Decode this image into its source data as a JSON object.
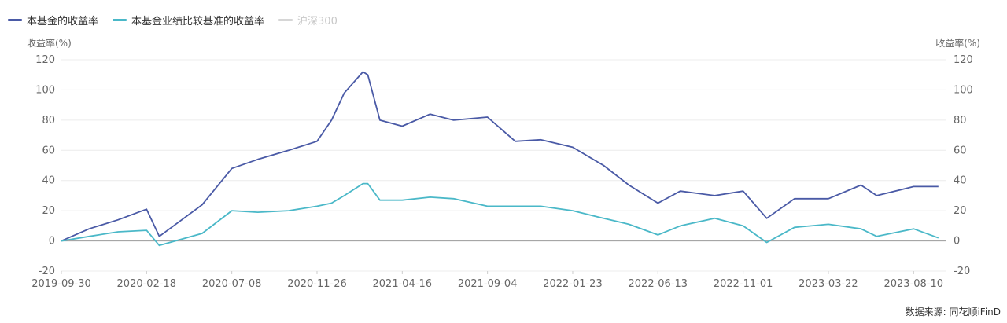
{
  "chart_data": {
    "type": "line",
    "series": [
      {
        "name": "本基金的收益率",
        "color": "#4a5aa6",
        "x": [
          "2019-09-30",
          "2019-11-15",
          "2020-01-02",
          "2020-02-18",
          "2020-03-10",
          "2020-05-20",
          "2020-07-08",
          "2020-08-20",
          "2020-10-10",
          "2020-11-26",
          "2020-12-20",
          "2021-01-10",
          "2021-02-10",
          "2021-02-18",
          "2021-03-10",
          "2021-04-16",
          "2021-06-01",
          "2021-07-10",
          "2021-09-04",
          "2021-10-20",
          "2021-12-01",
          "2022-01-23",
          "2022-03-15",
          "2022-04-26",
          "2022-06-13",
          "2022-07-20",
          "2022-09-15",
          "2022-11-01",
          "2022-12-10",
          "2023-01-25",
          "2023-03-22",
          "2023-05-15",
          "2023-06-10",
          "2023-08-10",
          "2023-09-20"
        ],
        "values": [
          0,
          8,
          14,
          21,
          3,
          24,
          48,
          54,
          60,
          66,
          80,
          98,
          112,
          110,
          80,
          76,
          84,
          80,
          82,
          66,
          67,
          62,
          50,
          37,
          25,
          33,
          30,
          33,
          15,
          28,
          28,
          37,
          30,
          36,
          36
        ]
      },
      {
        "name": "本基金业绩比较基准的收益率",
        "color": "#4ab8c8",
        "x": [
          "2019-09-30",
          "2019-11-15",
          "2020-01-02",
          "2020-02-18",
          "2020-03-10",
          "2020-05-20",
          "2020-07-08",
          "2020-08-20",
          "2020-10-10",
          "2020-11-26",
          "2020-12-20",
          "2021-01-10",
          "2021-02-10",
          "2021-02-18",
          "2021-03-10",
          "2021-04-16",
          "2021-06-01",
          "2021-07-10",
          "2021-09-04",
          "2021-10-20",
          "2021-12-01",
          "2022-01-23",
          "2022-03-15",
          "2022-04-26",
          "2022-06-13",
          "2022-07-20",
          "2022-09-15",
          "2022-11-01",
          "2022-12-10",
          "2023-01-25",
          "2023-03-22",
          "2023-05-15",
          "2023-06-10",
          "2023-08-10",
          "2023-09-20"
        ],
        "values": [
          0,
          3,
          6,
          7,
          -3,
          5,
          20,
          19,
          20,
          23,
          25,
          30,
          38,
          38,
          27,
          27,
          29,
          28,
          23,
          23,
          23,
          20,
          15,
          11,
          4,
          10,
          15,
          10,
          -1,
          9,
          11,
          8,
          3,
          8,
          2
        ]
      },
      {
        "name": "沪深300",
        "color": "#cccccc",
        "hidden": true,
        "x": [],
        "values": []
      }
    ],
    "xlabel": "",
    "ylabel_left": "收益率(%)",
    "ylabel_right": "收益率(%)",
    "ylim": [
      -20,
      120
    ],
    "yticks": [
      -20,
      0,
      20,
      40,
      60,
      80,
      100,
      120
    ],
    "xticks": [
      "2019-09-30",
      "2020-02-18",
      "2020-07-08",
      "2020-11-26",
      "2021-04-16",
      "2021-09-04",
      "2022-01-23",
      "2022-06-13",
      "2022-11-01",
      "2023-03-22",
      "2023-08-10"
    ],
    "xlim": [
      "2019-09-30",
      "2023-10-02"
    ],
    "grid": true,
    "legend_position": "top-left"
  },
  "legend": [
    {
      "label": "本基金的收益率",
      "color": "#4a5aa6"
    },
    {
      "label": "本基金业绩比较基准的收益率",
      "color": "#4ab8c8"
    },
    {
      "label": "沪深300",
      "color": "#cccccc"
    }
  ],
  "source": "数据来源: 同花顺iFinD"
}
